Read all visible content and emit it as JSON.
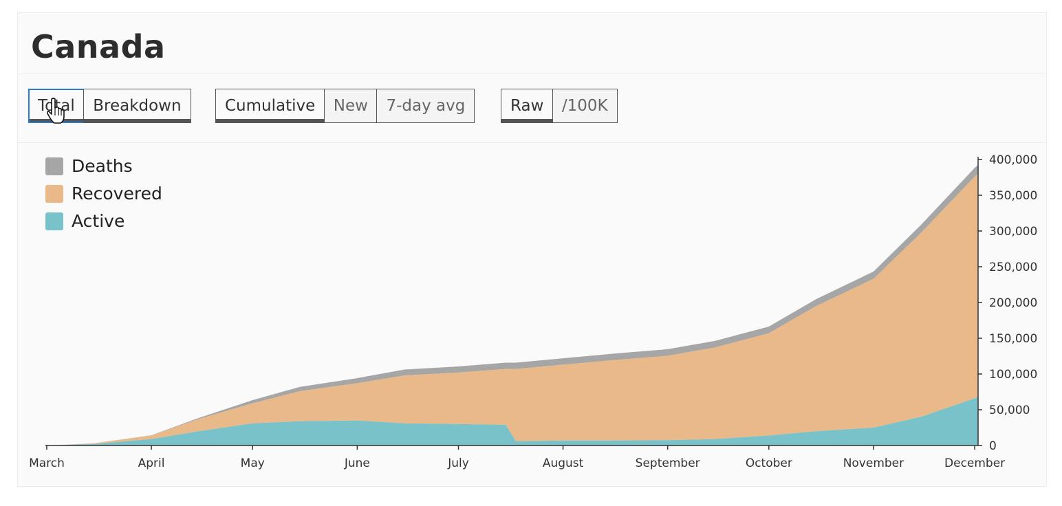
{
  "page": {
    "title": "Canada"
  },
  "toolbar": {
    "groups": [
      {
        "buttons": [
          {
            "label": "Total",
            "active": true
          },
          {
            "label": "Breakdown",
            "active": true
          }
        ]
      },
      {
        "buttons": [
          {
            "label": "Cumulative",
            "active": true
          },
          {
            "label": "New",
            "active": false
          },
          {
            "label": "7-day avg",
            "active": false
          }
        ]
      },
      {
        "buttons": [
          {
            "label": "Raw",
            "active": true
          },
          {
            "label": "/100K",
            "active": false
          }
        ]
      }
    ]
  },
  "colors": {
    "deaths": "#a6a6a6",
    "recovered": "#e9b98a",
    "active": "#79c2ca"
  },
  "chart_data": {
    "type": "area",
    "stacked": true,
    "x": [
      "Mar 1",
      "Mar 15",
      "Apr 1",
      "Apr 15",
      "May 1",
      "May 15",
      "Jun 1",
      "Jun 15",
      "Jul 1",
      "Jul 15",
      "Jul 18",
      "Aug 1",
      "Aug 15",
      "Sep 1",
      "Sep 15",
      "Oct 1",
      "Oct 15",
      "Nov 1",
      "Nov 15",
      "Dec 1",
      "Dec 2"
    ],
    "series": [
      {
        "name": "Active",
        "values": [
          0,
          2000,
          9000,
          20000,
          31000,
          34000,
          35000,
          31000,
          30000,
          29000,
          6000,
          7000,
          7000,
          7500,
          9000,
          14000,
          20000,
          25000,
          40000,
          66000,
          68000
        ]
      },
      {
        "name": "Recovered",
        "values": [
          0,
          1000,
          5000,
          17000,
          28000,
          42000,
          52000,
          67000,
          72000,
          78000,
          101000,
          106000,
          112000,
          118000,
          128000,
          143000,
          175000,
          208000,
          257000,
          310000,
          312000
        ]
      },
      {
        "name": "Deaths",
        "values": [
          0,
          100,
          300,
          1500,
          4500,
          6000,
          7200,
          8200,
          8600,
          8850,
          8880,
          8950,
          9050,
          9180,
          9260,
          9400,
          9700,
          10300,
          11200,
          12300,
          12400
        ]
      }
    ],
    "xticks": [
      "March",
      "April",
      "May",
      "June",
      "July",
      "August",
      "September",
      "October",
      "November",
      "December"
    ],
    "yticks": [
      "0",
      "50,000",
      "100,000",
      "150,000",
      "200,000",
      "250,000",
      "300,000",
      "350,000",
      "400,000"
    ],
    "ylim": [
      0,
      400000
    ],
    "legend": {
      "position": "top-left",
      "entries": [
        "Deaths",
        "Recovered",
        "Active"
      ]
    },
    "grid": false
  }
}
